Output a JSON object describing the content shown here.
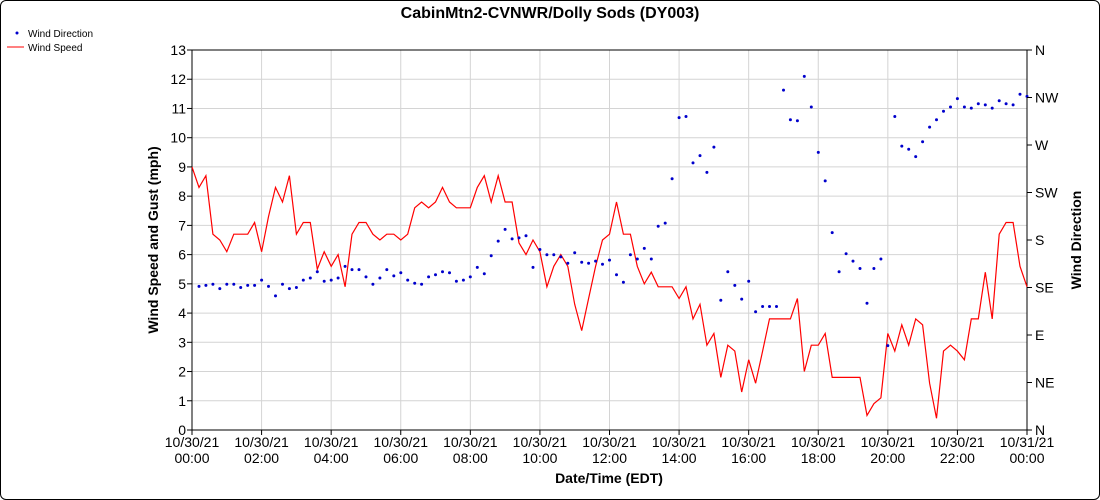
{
  "chart_data": {
    "type": "line",
    "title": "CabinMtn2-CVNWR/Dolly Sods (DY003)",
    "xlabel": "Date/Time (EDT)",
    "ylabel": "Wind Speed and Gust (mph)",
    "y2label": "Wind Direction",
    "xlim": [
      0,
      24
    ],
    "ylim": [
      0,
      13
    ],
    "y2lim": [
      0,
      360
    ],
    "grid": true,
    "legend_position": "top-left",
    "x_ticks": [
      {
        "value": 0,
        "date": "10/30/21",
        "time": "00:00"
      },
      {
        "value": 2,
        "date": "10/30/21",
        "time": "02:00"
      },
      {
        "value": 4,
        "date": "10/30/21",
        "time": "04:00"
      },
      {
        "value": 6,
        "date": "10/30/21",
        "time": "06:00"
      },
      {
        "value": 8,
        "date": "10/30/21",
        "time": "08:00"
      },
      {
        "value": 10,
        "date": "10/30/21",
        "time": "10:00"
      },
      {
        "value": 12,
        "date": "10/30/21",
        "time": "12:00"
      },
      {
        "value": 14,
        "date": "10/30/21",
        "time": "14:00"
      },
      {
        "value": 16,
        "date": "10/30/21",
        "time": "16:00"
      },
      {
        "value": 18,
        "date": "10/30/21",
        "time": "18:00"
      },
      {
        "value": 20,
        "date": "10/30/21",
        "time": "20:00"
      },
      {
        "value": 22,
        "date": "10/30/21",
        "time": "22:00"
      },
      {
        "value": 24,
        "date": "10/31/21",
        "time": "00:00"
      }
    ],
    "y_ticks": [
      "0",
      "1",
      "2",
      "3",
      "4",
      "5",
      "6",
      "7",
      "8",
      "9",
      "10",
      "11",
      "12",
      "13"
    ],
    "y2_ticks": [
      {
        "label": "N",
        "value": 0
      },
      {
        "label": "NE",
        "value": 45
      },
      {
        "label": "E",
        "value": 90
      },
      {
        "label": "SE",
        "value": 135
      },
      {
        "label": "S",
        "value": 180
      },
      {
        "label": "SW",
        "value": 225
      },
      {
        "label": "W",
        "value": 270
      },
      {
        "label": "NW",
        "value": 315
      },
      {
        "label": "N",
        "value": 360
      }
    ],
    "series": [
      {
        "name": "Wind Direction",
        "color": "#0000cc",
        "axis": "right",
        "marker": "dot",
        "points": [
          [
            0.2,
            136
          ],
          [
            0.4,
            137
          ],
          [
            0.6,
            138
          ],
          [
            0.8,
            134
          ],
          [
            1.0,
            138
          ],
          [
            1.2,
            138
          ],
          [
            1.4,
            135
          ],
          [
            1.6,
            137
          ],
          [
            1.8,
            137
          ],
          [
            2.0,
            142
          ],
          [
            2.2,
            136
          ],
          [
            2.4,
            127
          ],
          [
            2.6,
            138
          ],
          [
            2.8,
            134
          ],
          [
            3.0,
            135
          ],
          [
            3.2,
            142
          ],
          [
            3.4,
            144
          ],
          [
            3.6,
            150
          ],
          [
            3.8,
            141
          ],
          [
            4.0,
            142
          ],
          [
            4.2,
            144
          ],
          [
            4.4,
            155
          ],
          [
            4.6,
            152
          ],
          [
            4.8,
            152
          ],
          [
            5.0,
            145
          ],
          [
            5.2,
            138
          ],
          [
            5.4,
            144
          ],
          [
            5.6,
            152
          ],
          [
            5.8,
            146
          ],
          [
            6.0,
            149
          ],
          [
            6.2,
            142
          ],
          [
            6.4,
            139
          ],
          [
            6.6,
            138
          ],
          [
            6.8,
            145
          ],
          [
            7.0,
            147
          ],
          [
            7.2,
            150
          ],
          [
            7.4,
            149
          ],
          [
            7.6,
            141
          ],
          [
            7.8,
            142
          ],
          [
            8.0,
            145
          ],
          [
            8.2,
            154
          ],
          [
            8.4,
            148
          ],
          [
            8.6,
            165
          ],
          [
            8.8,
            179
          ],
          [
            9.0,
            190
          ],
          [
            9.2,
            181
          ],
          [
            9.4,
            182
          ],
          [
            9.6,
            184
          ],
          [
            9.8,
            154
          ],
          [
            10.0,
            171
          ],
          [
            10.2,
            166
          ],
          [
            10.4,
            166
          ],
          [
            10.6,
            164
          ],
          [
            10.8,
            158
          ],
          [
            11.0,
            168
          ],
          [
            11.2,
            159
          ],
          [
            11.4,
            158
          ],
          [
            11.6,
            160
          ],
          [
            11.8,
            157
          ],
          [
            12.0,
            161
          ],
          [
            12.2,
            147
          ],
          [
            12.4,
            140
          ],
          [
            12.6,
            166
          ],
          [
            12.8,
            162
          ],
          [
            13.0,
            172
          ],
          [
            13.2,
            162
          ],
          [
            13.4,
            193
          ],
          [
            13.6,
            196
          ],
          [
            13.8,
            238
          ],
          [
            14.0,
            296
          ],
          [
            14.2,
            297
          ],
          [
            14.4,
            253
          ],
          [
            14.6,
            260
          ],
          [
            14.8,
            244
          ],
          [
            15.0,
            268
          ],
          [
            15.2,
            123
          ],
          [
            15.4,
            150
          ],
          [
            15.6,
            137
          ],
          [
            15.8,
            124
          ],
          [
            16.0,
            141
          ],
          [
            16.2,
            112
          ],
          [
            16.4,
            117
          ],
          [
            16.6,
            117
          ],
          [
            16.8,
            117
          ],
          [
            17.0,
            322
          ],
          [
            17.2,
            294
          ],
          [
            17.4,
            293
          ],
          [
            17.6,
            335
          ],
          [
            17.8,
            306
          ],
          [
            18.0,
            263
          ],
          [
            18.2,
            236
          ],
          [
            18.4,
            187
          ],
          [
            18.6,
            150
          ],
          [
            18.8,
            167
          ],
          [
            19.0,
            160
          ],
          [
            19.2,
            153
          ],
          [
            19.4,
            120
          ],
          [
            19.6,
            153
          ],
          [
            19.8,
            162
          ],
          [
            20.0,
            80
          ],
          [
            20.2,
            297
          ],
          [
            20.4,
            269
          ],
          [
            20.6,
            266
          ],
          [
            20.8,
            259
          ],
          [
            21.0,
            273
          ],
          [
            21.2,
            287
          ],
          [
            21.4,
            294
          ],
          [
            21.6,
            302
          ],
          [
            21.8,
            306
          ],
          [
            22.0,
            314
          ],
          [
            22.2,
            306
          ],
          [
            22.4,
            305
          ],
          [
            22.6,
            309
          ],
          [
            22.8,
            308
          ],
          [
            23.0,
            305
          ],
          [
            23.2,
            312
          ],
          [
            23.4,
            309
          ],
          [
            23.6,
            308
          ],
          [
            23.8,
            318
          ],
          [
            24.0,
            316
          ]
        ]
      },
      {
        "name": "Wind Speed",
        "color": "#ff0000",
        "axis": "left",
        "marker": "line",
        "points": [
          [
            0.0,
            9.0
          ],
          [
            0.2,
            8.3
          ],
          [
            0.4,
            8.7
          ],
          [
            0.6,
            6.7
          ],
          [
            0.8,
            6.5
          ],
          [
            1.0,
            6.1
          ],
          [
            1.2,
            6.7
          ],
          [
            1.4,
            6.7
          ],
          [
            1.6,
            6.7
          ],
          [
            1.8,
            7.1
          ],
          [
            2.0,
            6.1
          ],
          [
            2.2,
            7.3
          ],
          [
            2.4,
            8.3
          ],
          [
            2.6,
            7.8
          ],
          [
            2.8,
            8.7
          ],
          [
            3.0,
            6.7
          ],
          [
            3.2,
            7.1
          ],
          [
            3.4,
            7.1
          ],
          [
            3.6,
            5.5
          ],
          [
            3.8,
            6.1
          ],
          [
            4.0,
            5.6
          ],
          [
            4.2,
            6.0
          ],
          [
            4.4,
            4.9
          ],
          [
            4.6,
            6.7
          ],
          [
            4.8,
            7.1
          ],
          [
            5.0,
            7.1
          ],
          [
            5.2,
            6.7
          ],
          [
            5.4,
            6.5
          ],
          [
            5.6,
            6.7
          ],
          [
            5.8,
            6.7
          ],
          [
            6.0,
            6.5
          ],
          [
            6.2,
            6.7
          ],
          [
            6.4,
            7.6
          ],
          [
            6.6,
            7.8
          ],
          [
            6.8,
            7.6
          ],
          [
            7.0,
            7.8
          ],
          [
            7.2,
            8.3
          ],
          [
            7.4,
            7.8
          ],
          [
            7.6,
            7.6
          ],
          [
            7.8,
            7.6
          ],
          [
            8.0,
            7.6
          ],
          [
            8.2,
            8.3
          ],
          [
            8.4,
            8.7
          ],
          [
            8.6,
            7.8
          ],
          [
            8.8,
            8.7
          ],
          [
            9.0,
            7.8
          ],
          [
            9.2,
            7.8
          ],
          [
            9.4,
            6.4
          ],
          [
            9.6,
            6.0
          ],
          [
            9.8,
            6.5
          ],
          [
            10.0,
            6.1
          ],
          [
            10.2,
            4.9
          ],
          [
            10.4,
            5.6
          ],
          [
            10.6,
            6.0
          ],
          [
            10.8,
            5.6
          ],
          [
            11.0,
            4.3
          ],
          [
            11.2,
            3.4
          ],
          [
            11.4,
            4.5
          ],
          [
            11.6,
            5.6
          ],
          [
            11.8,
            6.5
          ],
          [
            12.0,
            6.7
          ],
          [
            12.2,
            7.8
          ],
          [
            12.4,
            6.7
          ],
          [
            12.6,
            6.7
          ],
          [
            12.8,
            5.6
          ],
          [
            13.0,
            5.0
          ],
          [
            13.2,
            5.4
          ],
          [
            13.4,
            4.9
          ],
          [
            13.6,
            4.9
          ],
          [
            13.8,
            4.9
          ],
          [
            14.0,
            4.5
          ],
          [
            14.2,
            4.9
          ],
          [
            14.4,
            3.8
          ],
          [
            14.6,
            4.3
          ],
          [
            14.8,
            2.9
          ],
          [
            15.0,
            3.3
          ],
          [
            15.2,
            1.8
          ],
          [
            15.4,
            2.9
          ],
          [
            15.6,
            2.7
          ],
          [
            15.8,
            1.3
          ],
          [
            16.0,
            2.4
          ],
          [
            16.2,
            1.6
          ],
          [
            16.4,
            2.7
          ],
          [
            16.6,
            3.8
          ],
          [
            16.8,
            3.8
          ],
          [
            17.0,
            3.8
          ],
          [
            17.2,
            3.8
          ],
          [
            17.4,
            4.5
          ],
          [
            17.6,
            2.0
          ],
          [
            17.8,
            2.9
          ],
          [
            18.0,
            2.9
          ],
          [
            18.2,
            3.3
          ],
          [
            18.4,
            1.8
          ],
          [
            18.6,
            1.8
          ],
          [
            18.8,
            1.8
          ],
          [
            19.0,
            1.8
          ],
          [
            19.2,
            1.8
          ],
          [
            19.4,
            0.5
          ],
          [
            19.6,
            0.9
          ],
          [
            19.8,
            1.1
          ],
          [
            20.0,
            3.3
          ],
          [
            20.2,
            2.7
          ],
          [
            20.4,
            3.6
          ],
          [
            20.6,
            2.9
          ],
          [
            20.8,
            3.8
          ],
          [
            21.0,
            3.6
          ],
          [
            21.2,
            1.6
          ],
          [
            21.4,
            0.4
          ],
          [
            21.6,
            2.7
          ],
          [
            21.8,
            2.9
          ],
          [
            22.0,
            2.7
          ],
          [
            22.2,
            2.4
          ],
          [
            22.4,
            3.8
          ],
          [
            22.6,
            3.8
          ],
          [
            22.8,
            5.4
          ],
          [
            23.0,
            3.8
          ],
          [
            23.2,
            6.7
          ],
          [
            23.4,
            7.1
          ],
          [
            23.6,
            7.1
          ],
          [
            23.8,
            5.6
          ],
          [
            24.0,
            4.9
          ]
        ]
      }
    ]
  }
}
